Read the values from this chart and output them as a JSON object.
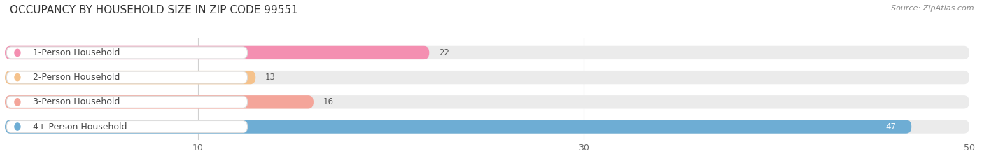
{
  "title": "OCCUPANCY BY HOUSEHOLD SIZE IN ZIP CODE 99551",
  "source": "Source: ZipAtlas.com",
  "categories": [
    "1-Person Household",
    "2-Person Household",
    "3-Person Household",
    "4+ Person Household"
  ],
  "values": [
    22,
    13,
    16,
    47
  ],
  "bar_colors": [
    "#f48fb1",
    "#f5c28c",
    "#f4a59a",
    "#6eadd4"
  ],
  "dot_colors": [
    "#f48fb1",
    "#f5c28c",
    "#f4a59a",
    "#6eadd4"
  ],
  "xlim": [
    0,
    50
  ],
  "xticks": [
    10,
    30,
    50
  ],
  "bg_color": "#ffffff",
  "track_color": "#ebebeb",
  "label_box_color": "#ffffff",
  "label_edge_color": "#dddddd",
  "title_fontsize": 11,
  "tick_fontsize": 9,
  "label_fontsize": 9,
  "value_fontsize": 8.5
}
